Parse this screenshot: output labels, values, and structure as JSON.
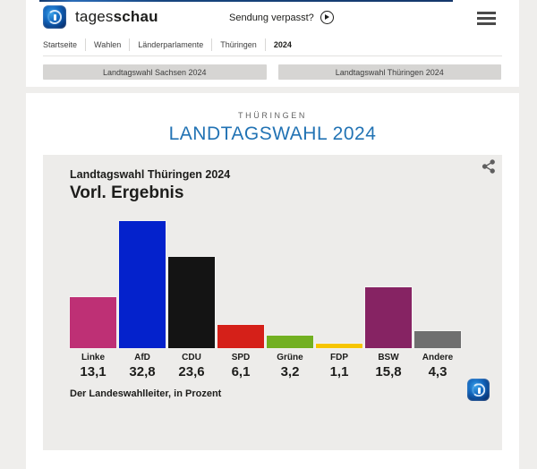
{
  "header": {
    "brand": {
      "regular": "tages",
      "bold": "schau"
    },
    "sendung_verpasst": "Sendung verpasst?",
    "breadcrumb": [
      "Startseite",
      "Wahlen",
      "Länderparlamente",
      "Thüringen",
      "2024"
    ]
  },
  "nav_buttons": [
    {
      "label": "Landtagswahl Sachsen 2024"
    },
    {
      "label": "Landtagswahl Thüringen 2024"
    }
  ],
  "page": {
    "kicker": "THÜRINGEN",
    "title": "LANDTAGSWAHL 2024",
    "title_color": "#2273b4"
  },
  "icons": {
    "brand_logo": "tagesschau-globe-logo",
    "play": "play-circle-icon",
    "menu": "hamburger-menu-icon",
    "share": "share-icon"
  },
  "chart_data": {
    "type": "bar",
    "title": "Landtagswahl Thüringen 2024",
    "subtitle": "Vorl. Ergebnis",
    "source_note": "Der Landeswahlleiter, in Prozent",
    "unit": "percent",
    "categories": [
      "Linke",
      "AfD",
      "CDU",
      "SPD",
      "Grüne",
      "FDP",
      "BSW",
      "Andere"
    ],
    "values": [
      13.1,
      32.8,
      23.6,
      6.1,
      3.2,
      1.1,
      15.8,
      4.3
    ],
    "value_labels": [
      "13,1",
      "32,8",
      "23,6",
      "6,1",
      "3,2",
      "1,1",
      "15,8",
      "4,3"
    ],
    "colors": [
      "#be3075",
      "#0422cc",
      "#141414",
      "#d52019",
      "#72b021",
      "#f6c500",
      "#862363",
      "#6f6f6f"
    ],
    "ylim": [
      0,
      33
    ],
    "grid": false,
    "legend": false
  }
}
